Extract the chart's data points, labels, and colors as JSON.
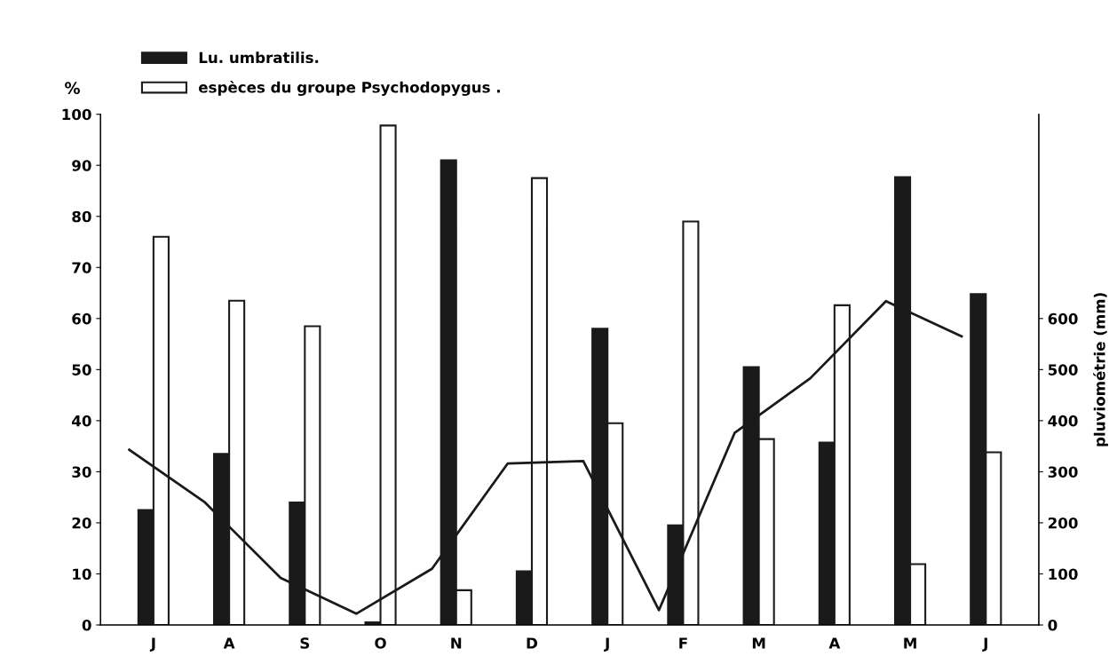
{
  "chart_data": {
    "type": "bar",
    "categories": [
      "J",
      "A",
      "S",
      "O",
      "N",
      "D",
      "J",
      "F",
      "M",
      "A",
      "M",
      "J"
    ],
    "ylabel": "%",
    "y2label": "pluviométrie (mm)",
    "ylim": [
      0,
      100
    ],
    "yticks": [
      0,
      10,
      20,
      30,
      40,
      50,
      60,
      70,
      80,
      90,
      100
    ],
    "y2lim": [
      0,
      1000
    ],
    "y2ticks": [
      0,
      100,
      200,
      300,
      400,
      500,
      600
    ],
    "legend": "top left",
    "grid": false,
    "series": [
      {
        "name": "Lu. umbratilis.",
        "color": "#1a1a1a",
        "values": [
          22.5,
          33.5,
          24,
          0.5,
          91,
          10.5,
          58,
          19.5,
          50.5,
          35.7,
          87.7,
          64.8
        ]
      },
      {
        "name": "espèces du groupe Psychodopygus .",
        "color": "#ffffff",
        "values": [
          76,
          63.5,
          58.5,
          97.8,
          6.8,
          87.5,
          39.5,
          79,
          36.4,
          62.6,
          11.9,
          33.8
        ]
      },
      {
        "type": "line",
        "axis": "y2",
        "color": "#1a1a1a",
        "values": [
          343,
          240,
          92,
          22,
          110,
          316,
          321,
          29,
          376,
          483,
          634,
          565
        ]
      }
    ]
  }
}
